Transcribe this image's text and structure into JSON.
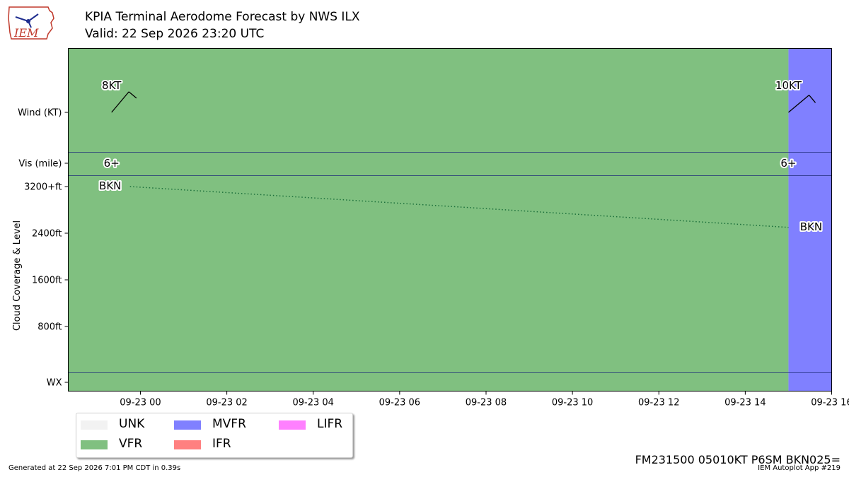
{
  "title": "KPIA Terminal Aerodome Forecast by NWS ILX",
  "subtitle": "Valid: 22 Sep 2026 23:20 UTC",
  "logo_text": "IEM",
  "footer_left": "Generated at 22 Sep 2026 7:01 PM CDT in 0.39s",
  "footer_right": "IEM Autoplot App #219",
  "raw_taf": "FM231500 05010KT P6SM BKN025=",
  "colors": {
    "UNK": "#f2f2f2",
    "VFR": "#80c080",
    "MVFR": "#8080ff",
    "IFR": "#ff8080",
    "LIFR": "#ff80ff"
  },
  "legend": [
    {
      "label": "UNK",
      "color": "#f2f2f2"
    },
    {
      "label": "MVFR",
      "color": "#8080ff"
    },
    {
      "label": "LIFR",
      "color": "#ff80ff"
    },
    {
      "label": "VFR",
      "color": "#80c080"
    },
    {
      "label": "IFR",
      "color": "#ff8080"
    }
  ],
  "chart_data": {
    "type": "timeline",
    "ylabel": "Cloud Coverage & Level",
    "rows": [
      {
        "label": "Wind (KT)"
      },
      {
        "label": "Vis (mile)"
      },
      {
        "label": "WX"
      }
    ],
    "cloud_ticks": [
      "3200+ft",
      "2400ft",
      "1600ft",
      "800ft"
    ],
    "cloud_tick_values": [
      3200,
      2400,
      1600,
      800
    ],
    "x_tick_labels": [
      "09-23 00",
      "09-23 02",
      "09-23 04",
      "09-23 06",
      "09-23 08",
      "09-23 10",
      "09-23 12",
      "09-23 14",
      "09-23 16"
    ],
    "x_tick_hours": [
      0,
      2,
      4,
      6,
      8,
      10,
      12,
      14,
      16
    ],
    "x_range_hours": [
      -1.67,
      16
    ],
    "periods": [
      {
        "start_hour": -1.67,
        "end_hour": 15,
        "category": "VFR",
        "wind_label": "8KT",
        "wind_speed_kt": 8,
        "wind_dir_deg": 40,
        "vis_label": "6+",
        "cloud_label": "BKN",
        "cloud_level_ft": 3200,
        "valid_hour": -0.7
      },
      {
        "start_hour": 15,
        "end_hour": 16,
        "category": "MVFR",
        "wind_label": "10KT",
        "wind_speed_kt": 10,
        "wind_dir_deg": 50,
        "vis_label": "6+",
        "cloud_label": "BKN",
        "cloud_level_ft": 2500,
        "valid_hour": 15
      }
    ]
  }
}
